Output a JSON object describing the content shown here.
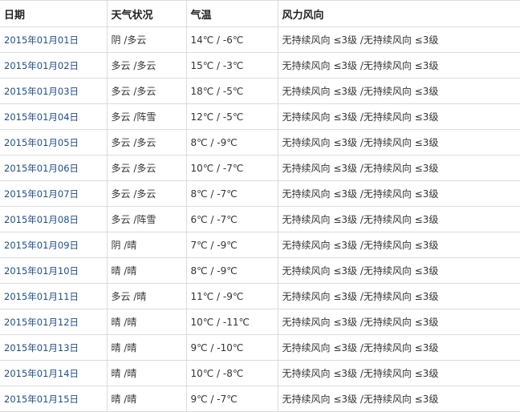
{
  "headers": {
    "date": "日期",
    "weather": "天气状况",
    "temp": "气温",
    "wind": "风力风向"
  },
  "rows": [
    {
      "date": "2015年01月01日",
      "weather": "阴 /多云",
      "temp": "14℃ / -6℃",
      "wind": "无持续风向 ≤3级 /无持续风向 ≤3级"
    },
    {
      "date": "2015年01月02日",
      "weather": "多云 /多云",
      "temp": "15℃ / -3℃",
      "wind": "无持续风向 ≤3级 /无持续风向 ≤3级"
    },
    {
      "date": "2015年01月03日",
      "weather": "多云 /多云",
      "temp": "18℃ / -5℃",
      "wind": "无持续风向 ≤3级 /无持续风向 ≤3级"
    },
    {
      "date": "2015年01月04日",
      "weather": "多云 /阵雪",
      "temp": "12℃ / -5℃",
      "wind": "无持续风向 ≤3级 /无持续风向 ≤3级"
    },
    {
      "date": "2015年01月05日",
      "weather": "多云 /多云",
      "temp": "8℃ / -9℃",
      "wind": "无持续风向 ≤3级 /无持续风向 ≤3级"
    },
    {
      "date": "2015年01月06日",
      "weather": "多云 /多云",
      "temp": "10℃ / -7℃",
      "wind": "无持续风向 ≤3级 /无持续风向 ≤3级"
    },
    {
      "date": "2015年01月07日",
      "weather": "多云 /多云",
      "temp": "8℃ / -7℃",
      "wind": "无持续风向 ≤3级 /无持续风向 ≤3级"
    },
    {
      "date": "2015年01月08日",
      "weather": "多云 /阵雪",
      "temp": "6℃ / -7℃",
      "wind": "无持续风向 ≤3级 /无持续风向 ≤3级"
    },
    {
      "date": "2015年01月09日",
      "weather": "阴 /晴",
      "temp": "7℃ / -9℃",
      "wind": "无持续风向 ≤3级 /无持续风向 ≤3级"
    },
    {
      "date": "2015年01月10日",
      "weather": "晴 /晴",
      "temp": "8℃ / -9℃",
      "wind": "无持续风向 ≤3级 /无持续风向 ≤3级"
    },
    {
      "date": "2015年01月11日",
      "weather": "多云 /晴",
      "temp": "11℃ / -9℃",
      "wind": "无持续风向 ≤3级 /无持续风向 ≤3级"
    },
    {
      "date": "2015年01月12日",
      "weather": "晴 /晴",
      "temp": "10℃ / -11℃",
      "wind": "无持续风向 ≤3级 /无持续风向 ≤3级"
    },
    {
      "date": "2015年01月13日",
      "weather": "晴 /晴",
      "temp": "9℃ / -10℃",
      "wind": "无持续风向 ≤3级 /无持续风向 ≤3级"
    },
    {
      "date": "2015年01月14日",
      "weather": "晴 /晴",
      "temp": "10℃ / -8℃",
      "wind": "无持续风向 ≤3级 /无持续风向 ≤3级"
    },
    {
      "date": "2015年01月15日",
      "weather": "晴 /晴",
      "temp": "9℃ / -7℃",
      "wind": "无持续风向 ≤3级 /无持续风向 ≤3级"
    }
  ]
}
